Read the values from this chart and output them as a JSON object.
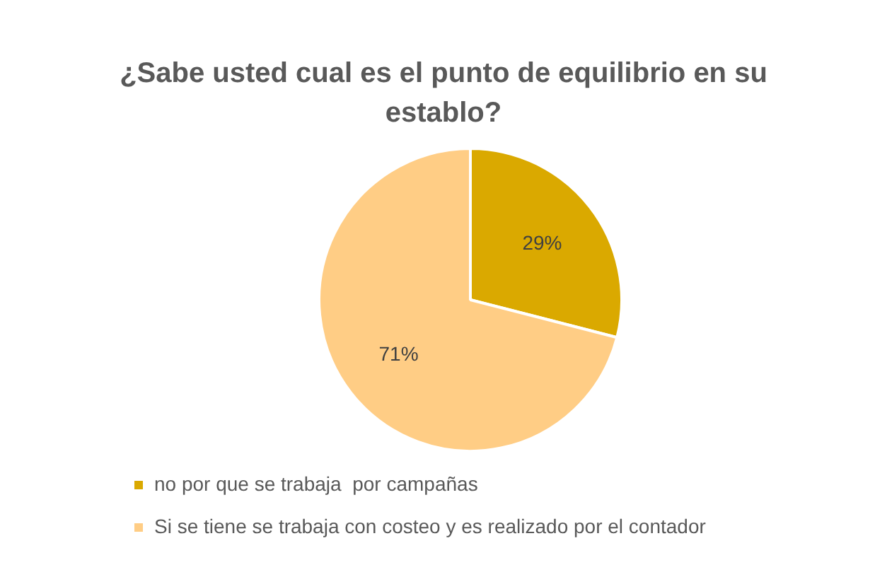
{
  "chart_data": {
    "type": "pie",
    "title": "¿Sabe usted cual es el punto de equilibrio  en su establo?",
    "categories": [
      "no por que se trabaja  por campañas",
      "Si se tiene se trabaja con costeo y es realizado por el contador"
    ],
    "values": [
      29,
      71
    ],
    "colors": [
      "#daa900",
      "#ffcd85"
    ],
    "value_labels": [
      "29%",
      "71%"
    ],
    "legend": "bottom"
  }
}
